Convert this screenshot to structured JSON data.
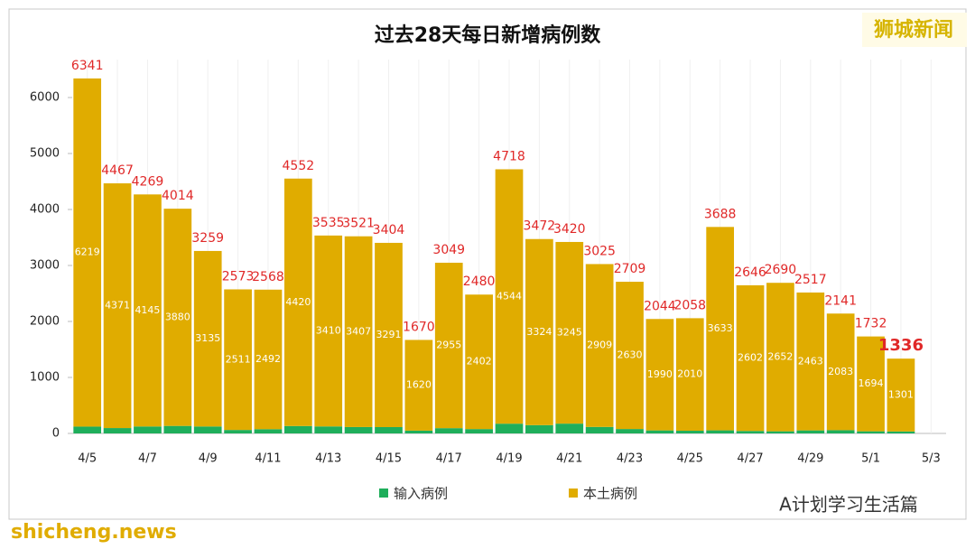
{
  "chart_data": {
    "type": "stacked-bar",
    "title": "过去28天每日新增病例数",
    "categories": [
      "4/5",
      null,
      "4/7",
      null,
      "4/9",
      null,
      "4/11",
      null,
      "4/13",
      null,
      "4/15",
      null,
      "4/17",
      null,
      "4/19",
      null,
      "4/21",
      null,
      "4/23",
      null,
      "4/25",
      null,
      "4/27",
      null,
      "4/29",
      null,
      "5/1",
      null,
      "5/3"
    ],
    "series": [
      {
        "name": "输入病例",
        "color": "#1fae5b",
        "values": [
          122,
          96,
          124,
          134,
          124,
          62,
          76,
          132,
          125,
          114,
          113,
          50,
          94,
          78,
          174,
          148,
          175,
          116,
          79,
          54,
          48,
          55,
          44,
          38,
          54,
          58,
          38,
          35,
          null
        ]
      },
      {
        "name": "本土病例",
        "color": "#e0ac00",
        "values": [
          6219,
          4371,
          4145,
          3880,
          3135,
          2511,
          2492,
          4420,
          3410,
          3407,
          3291,
          1620,
          2955,
          2402,
          4544,
          3324,
          3245,
          2909,
          2630,
          1990,
          2010,
          3633,
          2602,
          2652,
          2463,
          2083,
          1694,
          1301,
          null
        ]
      }
    ],
    "totals": [
      6341,
      4467,
      4269,
      4014,
      3259,
      2573,
      2568,
      4552,
      3535,
      3521,
      3404,
      1670,
      3049,
      2480,
      4718,
      3472,
      3420,
      3025,
      2709,
      2044,
      2058,
      3688,
      2646,
      2690,
      2517,
      2141,
      1732,
      1336,
      null
    ],
    "ylim": [
      0,
      7000
    ],
    "yticks": [
      0,
      1000,
      2000,
      3000,
      4000,
      5000,
      6000
    ],
    "legend_position": "bottom"
  },
  "watermarks": {
    "brand": "狮城新闻",
    "account": "A计划学习生活篇",
    "site": "shicheng.news"
  }
}
